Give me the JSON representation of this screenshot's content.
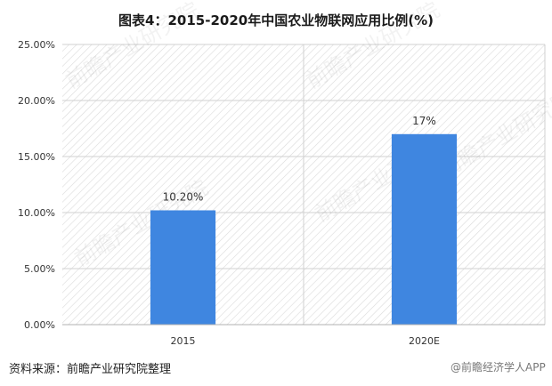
{
  "chart_title": "图表4：2015-2020年中国农业物联网应用比例(%)",
  "source_note": "资料来源：前瞻产业研究院整理",
  "watermark_brand": "@前瞻经济学人APP",
  "watermark_text": "前瞻产业研究院",
  "colors": {
    "bar": "#3f86e0",
    "grid": "#d0d0d0",
    "hatch": "#dadada",
    "axis": "#b0b0b0",
    "text": "#333333"
  },
  "chart_data": {
    "type": "bar",
    "title": "图表4：2015-2020年中国农业物联网应用比例(%)",
    "categories": [
      "2015",
      "2020E"
    ],
    "values": [
      10.2,
      17
    ],
    "data_labels": [
      "10.20%",
      "17%"
    ],
    "y_ticks": [
      "0.00%",
      "5.00%",
      "10.00%",
      "15.00%",
      "20.00%",
      "25.00%"
    ],
    "ylim": [
      0,
      25
    ],
    "xlabel": "",
    "ylabel": "",
    "grid": true,
    "legend": "none"
  }
}
